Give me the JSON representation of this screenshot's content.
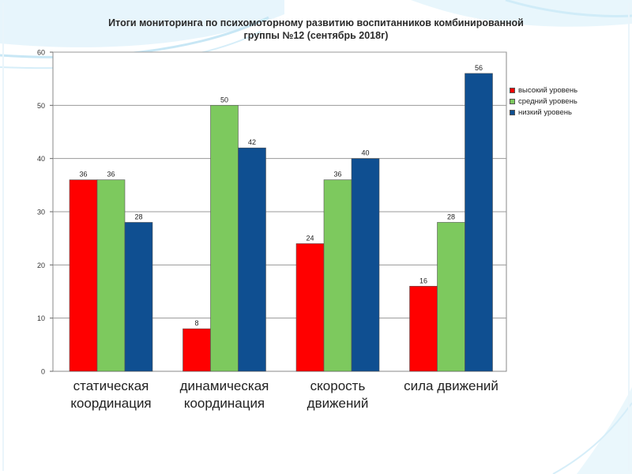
{
  "slide": {
    "title_line1": "Итоги мониторинга по психомоторному развитию воспитанников комбинированной",
    "title_line2": "группы №12  (сентябрь 2018г)"
  },
  "chart_data": {
    "type": "bar",
    "title": "Итоги мониторинга по психомоторному развитию воспитанников комбинированной группы №12  (сентябрь 2018г)",
    "categories": [
      [
        "статическая",
        "координация"
      ],
      [
        "динамическая",
        "координация"
      ],
      [
        "скорость",
        "движений"
      ],
      [
        "сила движений"
      ]
    ],
    "series": [
      {
        "name": "высокий уровень",
        "color": "#ff0000",
        "values": [
          36,
          8,
          24,
          16
        ]
      },
      {
        "name": "средний уровень",
        "color": "#7dc95e",
        "values": [
          36,
          50,
          36,
          28
        ]
      },
      {
        "name": "низкий уровень",
        "color": "#0f4f91",
        "values": [
          28,
          42,
          40,
          56
        ]
      }
    ],
    "yticks": [
      "0",
      "10",
      "20",
      "30",
      "40",
      "50",
      "60"
    ],
    "ylim": [
      0,
      60
    ],
    "grid": true,
    "legend": "right",
    "xlabel": "",
    "ylabel": ""
  }
}
